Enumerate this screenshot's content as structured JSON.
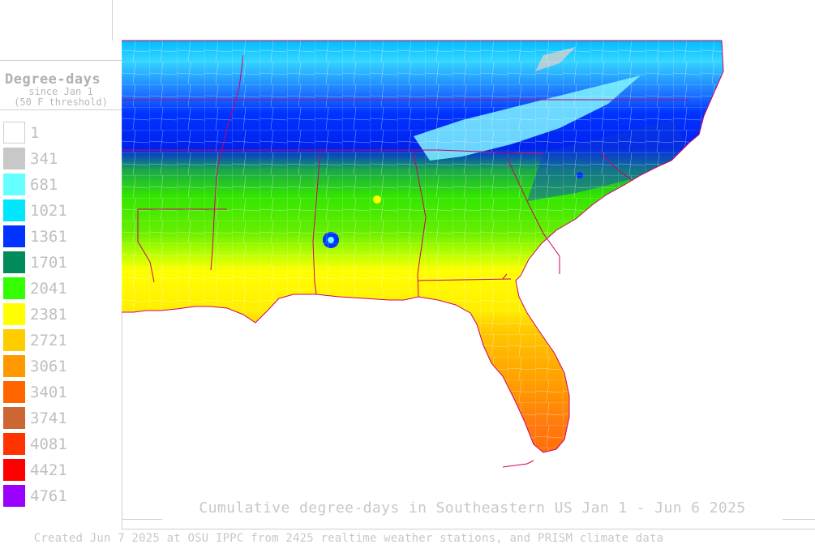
{
  "legend": {
    "title": "Degree-days",
    "subtitle_1": "since Jan 1",
    "subtitle_2": "(50 F threshold)",
    "items": [
      {
        "label": "1",
        "color": "#ffffff"
      },
      {
        "label": "341",
        "color": "#c8c8c8"
      },
      {
        "label": "681",
        "color": "#66ffff"
      },
      {
        "label": "1021",
        "color": "#00e6ff"
      },
      {
        "label": "1361",
        "color": "#0033ff"
      },
      {
        "label": "1701",
        "color": "#008c5a"
      },
      {
        "label": "2041",
        "color": "#33ff00"
      },
      {
        "label": "2381",
        "color": "#ffff00"
      },
      {
        "label": "2721",
        "color": "#ffcc00"
      },
      {
        "label": "3061",
        "color": "#ff9900"
      },
      {
        "label": "3401",
        "color": "#ff6600"
      },
      {
        "label": "3741",
        "color": "#cc6633"
      },
      {
        "label": "4081",
        "color": "#ff3300"
      },
      {
        "label": "4421",
        "color": "#ff0000"
      },
      {
        "label": "4761",
        "color": "#9900ff"
      }
    ]
  },
  "caption": "Cumulative degree-days in Southeastern US Jan 1 - Jun 6 2025",
  "credit": "Created Jun 7 2025 at OSU IPPC from 2425 realtime weather stations, and PRISM climate data",
  "colors": {
    "state_border": "#cc0066",
    "county_border": "#ffffff",
    "frame": "#cfcfcf",
    "text_gray": "#c0c0c0"
  }
}
